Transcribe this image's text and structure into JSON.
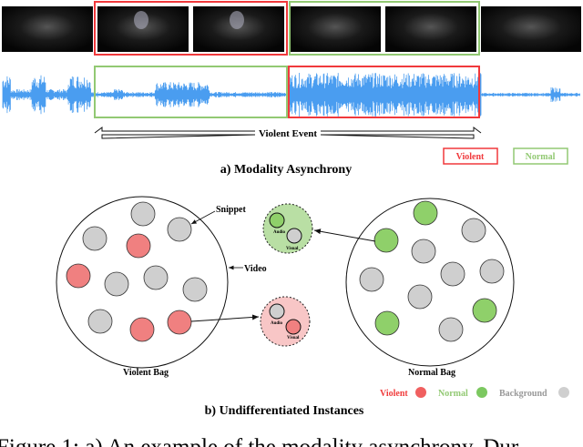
{
  "part_a": {
    "event_label": "Violent Event",
    "legend": [
      {
        "label": "Violent",
        "color": "#f0393c"
      },
      {
        "label": "Normal",
        "color": "#92c973"
      }
    ],
    "title": "a) Modality Asynchrony",
    "waveform_color": "#4a9df0"
  },
  "part_b": {
    "snippet_label": "Snippet",
    "video_label": "Video",
    "violent_bag_label": "Violent Bag",
    "normal_bag_label": "Normal Bag",
    "audio_label": "Audio",
    "visual_label": "Visual",
    "legend": [
      {
        "label": "Violent",
        "color": "#f08080"
      },
      {
        "label": "Normal",
        "color": "#8fd06a"
      },
      {
        "label": "Background",
        "color": "#cfcfcf"
      }
    ],
    "title": "b) Undifferentiated Instances"
  },
  "caption": "Figure 1: a) An example of the modality asynchrony. Dur-"
}
